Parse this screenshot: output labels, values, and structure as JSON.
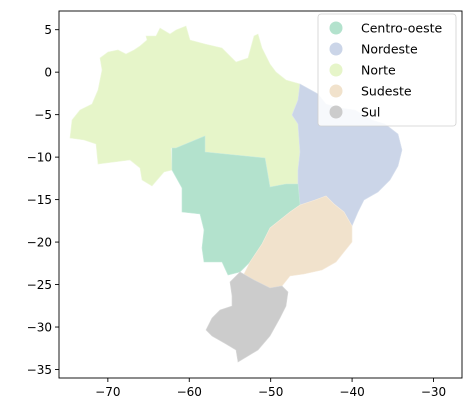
{
  "map": {
    "x_ticks": [
      "−70",
      "−60",
      "−50",
      "−40",
      "−30"
    ],
    "y_ticks": [
      "5",
      "0",
      "−5",
      "−10",
      "−15",
      "−20",
      "−25",
      "−30",
      "−35"
    ],
    "x_tick_values": [
      -70,
      -60,
      -50,
      -40,
      -30
    ],
    "y_tick_values": [
      5,
      0,
      -5,
      -10,
      -15,
      -20,
      -25,
      -30,
      -35
    ],
    "xlim": [
      -76,
      -26.5
    ],
    "ylim": [
      -36,
      7.2
    ],
    "legend_placement": "top-right",
    "legend": [
      {
        "label": "Centro-oeste",
        "color": "#b3e2cd"
      },
      {
        "label": "Nordeste",
        "color": "#cbd5e8"
      },
      {
        "label": "Norte",
        "color": "#e6f5c9"
      },
      {
        "label": "Sudeste",
        "color": "#f1e2cc"
      },
      {
        "label": "Sul",
        "color": "#cccccc"
      }
    ]
  }
}
